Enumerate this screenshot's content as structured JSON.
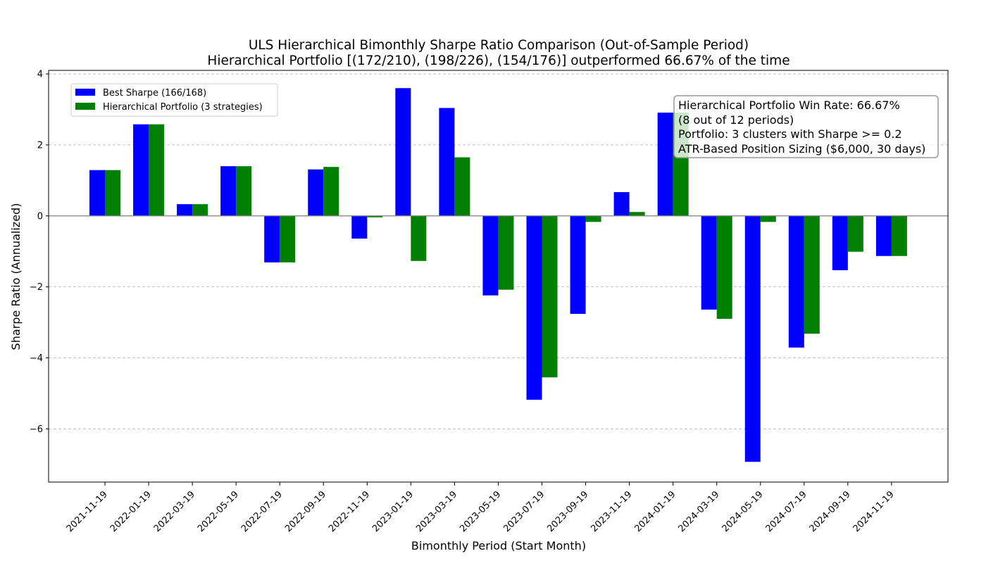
{
  "chart_data": {
    "type": "bar",
    "title": "ULS Hierarchical Bimonthly Sharpe Ratio Comparison (Out-of-Sample Period)",
    "subtitle": "Hierarchical Portfolio [(172/210), (198/226), (154/176)] outperformed 66.67% of the time",
    "xlabel": "Bimonthly Period (Start Month)",
    "ylabel": "Sharpe Ratio (Annualized)",
    "ylim": [
      -7.5,
      4.1
    ],
    "yticks": [
      4,
      2,
      0,
      -2,
      -4,
      -6
    ],
    "grid": "y-dashed",
    "legend_position": "top-left",
    "categories": [
      "2021-11-19",
      "2022-01-19",
      "2022-03-19",
      "2022-05-19",
      "2022-07-19",
      "2022-09-19",
      "2022-11-19",
      "2023-01-19",
      "2023-03-19",
      "2023-05-19",
      "2023-07-19",
      "2023-09-19",
      "2023-11-19",
      "2024-01-19",
      "2024-03-19",
      "2024-05-19",
      "2024-07-19",
      "2024-09-19",
      "2024-11-19"
    ],
    "series": [
      {
        "name": "Best Sharpe (166/168)",
        "color": "#0000ff",
        "values": [
          1.29,
          2.58,
          0.33,
          1.4,
          -1.31,
          1.31,
          -0.64,
          3.6,
          3.04,
          -2.24,
          -5.18,
          -2.76,
          0.67,
          2.91,
          -2.64,
          -6.93,
          -3.71,
          -1.53,
          -1.13
        ]
      },
      {
        "name": "Hierarchical Portfolio (3 strategies)",
        "color": "#008000",
        "values": [
          1.29,
          2.58,
          0.33,
          1.4,
          -1.31,
          1.38,
          -0.04,
          -1.27,
          1.65,
          -2.08,
          -4.55,
          -0.17,
          0.11,
          2.91,
          -2.9,
          -0.17,
          -3.32,
          -1.01,
          -1.13
        ]
      }
    ],
    "annotation": {
      "lines": [
        "Hierarchical Portfolio Win Rate: 66.67%",
        "(8 out of 12 periods)",
        "Portfolio: 3 clusters with Sharpe >= 0.2",
        "ATR-Based Position Sizing ($6,000, 30 days)"
      ],
      "position": "top-right"
    }
  }
}
